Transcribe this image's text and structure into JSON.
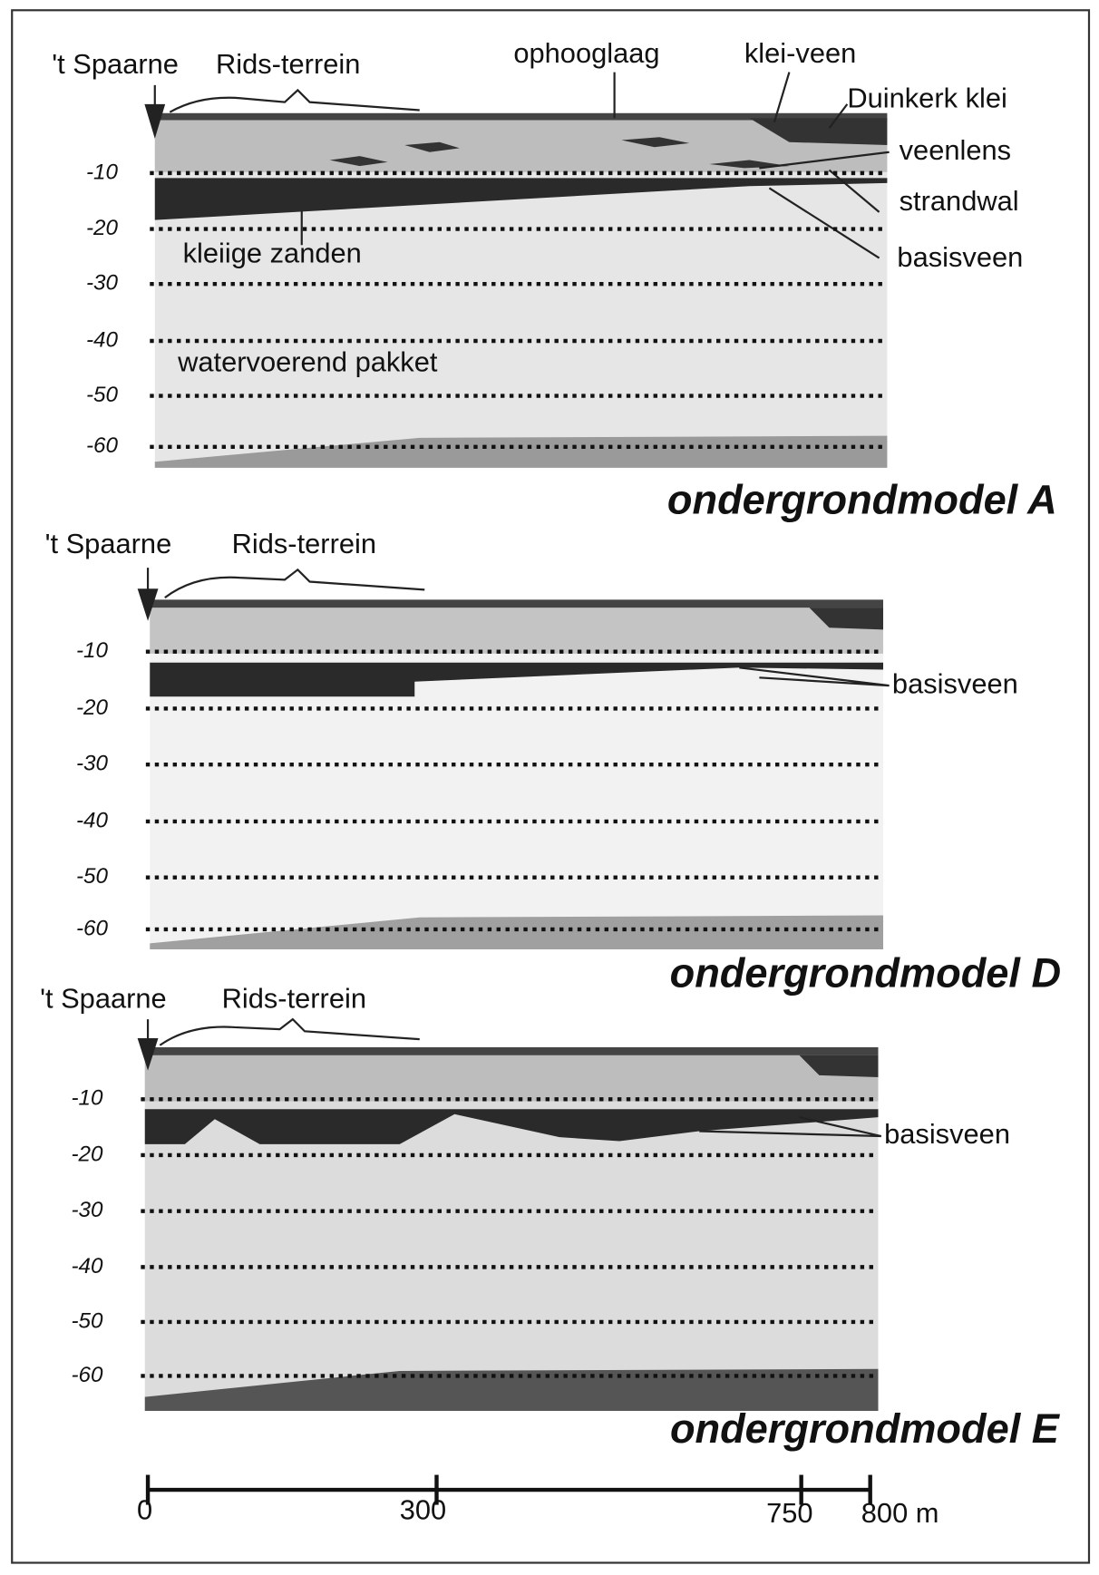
{
  "sections": [
    {
      "title": "ondergrondmodel A",
      "labels": {
        "spaarne": "'t Spaarne",
        "rids": "Rids-terrein",
        "ophooglaag": "ophooglaag",
        "kleiveen": "klei-veen",
        "duinkerk": "Duinkerk klei",
        "veenlens": "veenlens",
        "strandwal": "strandwal",
        "basisveen": "basisveen",
        "kleiige": "kleiige zanden",
        "watervoerend": "watervoerend pakket"
      },
      "depths": [
        "-10",
        "-20",
        "-30",
        "-40",
        "-50",
        "-60"
      ]
    },
    {
      "title": "ondergrondmodel D",
      "labels": {
        "spaarne": "'t Spaarne",
        "rids": "Rids-terrein",
        "basisveen": "basisveen"
      },
      "depths": [
        "-10",
        "-20",
        "-30",
        "-40",
        "-50",
        "-60"
      ]
    },
    {
      "title": "ondergrondmodel E",
      "labels": {
        "spaarne": "'t Spaarne",
        "rids": "Rids-terrein",
        "basisveen": "basisveen"
      },
      "depths": [
        "-10",
        "-20",
        "-30",
        "-40",
        "-50",
        "-60"
      ]
    }
  ],
  "scale_bar": [
    "0",
    "300",
    "750",
    "800 m"
  ]
}
